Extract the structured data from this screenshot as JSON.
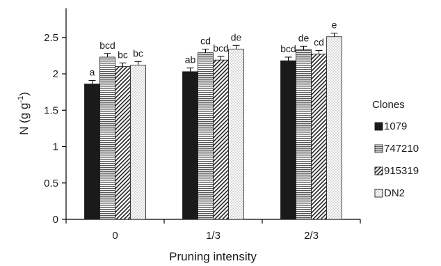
{
  "chart_data": {
    "type": "bar",
    "categories": [
      "0",
      "1/3",
      "2/3"
    ],
    "series": [
      {
        "name": "1079",
        "pattern": "solid",
        "values": [
          1.86,
          2.03,
          2.18
        ],
        "errors": [
          0.05,
          0.05,
          0.05
        ],
        "letters": [
          "a",
          "ab",
          "bcd"
        ]
      },
      {
        "name": "747210",
        "pattern": "horizontal",
        "values": [
          2.23,
          2.29,
          2.33
        ],
        "errors": [
          0.05,
          0.05,
          0.05
        ],
        "letters": [
          "bcd",
          "cd",
          "de"
        ]
      },
      {
        "name": "915319",
        "pattern": "diagonal",
        "values": [
          2.1,
          2.19,
          2.27
        ],
        "errors": [
          0.05,
          0.05,
          0.05
        ],
        "letters": [
          "bc",
          "bcd",
          "cd"
        ]
      },
      {
        "name": "DN2",
        "pattern": "dotted",
        "values": [
          2.12,
          2.34,
          2.51
        ],
        "errors": [
          0.05,
          0.05,
          0.05
        ],
        "letters": [
          "bc",
          "de",
          "e"
        ]
      }
    ],
    "xlabel": "Pruning intensity",
    "ylabel_main": "N (g g",
    "ylabel_sup": "-1",
    "ylabel_close": ")",
    "ylim": [
      0,
      2.9
    ],
    "yticks": [
      "0",
      "0.5",
      "1",
      "1.5",
      "2",
      "2.5"
    ],
    "ytick_values": [
      0,
      0.5,
      1,
      1.5,
      2,
      2.5
    ],
    "grid": false,
    "legend": {
      "title": "Clones",
      "placement": "right"
    }
  }
}
